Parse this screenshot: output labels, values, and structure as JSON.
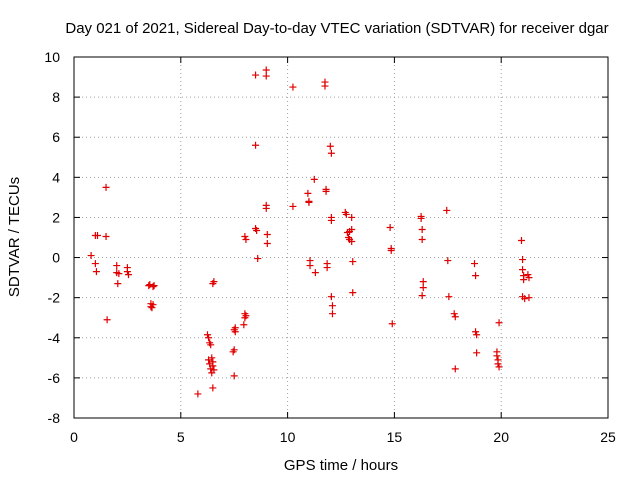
{
  "chart_data": {
    "type": "scatter",
    "title": "Day 021 of 2021, Sidereal Day-to-day VTEC variation (SDTVAR) for receiver dgar",
    "xlabel": "GPS time / hours",
    "ylabel": "SDTVAR / TECUs",
    "xlim": [
      0,
      25
    ],
    "ylim": [
      -8,
      10
    ],
    "xticks": [
      0,
      5,
      10,
      15,
      20,
      25
    ],
    "yticks": [
      -8,
      -6,
      -4,
      -2,
      0,
      2,
      4,
      6,
      8,
      10
    ],
    "grid": true,
    "marker": "plus",
    "color": "#e00000",
    "series": [
      {
        "name": "SDTVAR",
        "x": [
          0.8,
          1.0,
          1.0,
          1.05,
          1.1,
          1.5,
          1.5,
          1.55,
          2.0,
          2.0,
          2.05,
          2.1,
          2.5,
          2.5,
          2.55,
          3.5,
          3.55,
          3.6,
          3.6,
          3.65,
          3.7,
          3.7,
          3.75,
          5.8,
          6.25,
          6.3,
          6.35,
          6.4,
          6.45,
          6.5,
          6.5,
          6.55,
          6.3,
          6.35,
          6.4,
          6.45,
          6.5,
          6.5,
          6.55,
          7.45,
          7.5,
          7.5,
          7.55,
          7.5,
          7.55,
          7.95,
          8.0,
          8.0,
          8.05,
          8.0,
          8.05,
          8.5,
          8.5,
          8.5,
          8.55,
          8.6,
          9.0,
          9.0,
          9.0,
          9.0,
          9.05,
          9.05,
          10.25,
          10.25,
          10.95,
          11.0,
          11.0,
          11.05,
          11.05,
          11.25,
          11.3,
          11.75,
          11.75,
          11.8,
          11.8,
          11.85,
          11.85,
          12.0,
          12.05,
          12.05,
          12.05,
          12.05,
          12.1,
          12.1,
          12.7,
          12.75,
          12.8,
          12.85,
          12.9,
          12.9,
          13.0,
          13.0,
          13.0,
          13.05,
          13.05,
          14.8,
          14.85,
          14.85,
          14.9,
          16.25,
          16.25,
          16.3,
          16.3,
          16.35,
          16.35,
          16.3,
          17.45,
          17.5,
          17.55,
          17.8,
          17.85,
          17.85,
          18.75,
          18.8,
          18.8,
          18.85,
          18.85,
          19.8,
          19.8,
          19.85,
          19.85,
          19.9,
          19.9,
          20.95,
          21.0,
          21.0,
          21.05,
          21.05,
          21.1,
          21.0,
          21.25,
          21.3,
          21.3
        ],
        "y": [
          0.1,
          1.1,
          -0.3,
          -0.7,
          1.1,
          3.5,
          1.05,
          -3.1,
          -0.4,
          -0.75,
          -1.3,
          -0.8,
          -0.5,
          -0.7,
          -0.85,
          -1.4,
          -1.35,
          -2.3,
          -2.45,
          -2.5,
          -1.45,
          -2.35,
          -1.4,
          -6.8,
          -3.85,
          -4.0,
          -4.25,
          -4.35,
          -5.0,
          -5.2,
          -5.4,
          -5.6,
          -5.1,
          -5.3,
          -5.55,
          -5.75,
          -6.5,
          -1.3,
          -1.2,
          -4.7,
          -4.6,
          -5.9,
          -3.5,
          -3.6,
          -3.7,
          -3.35,
          -2.8,
          -3.0,
          -2.9,
          1.05,
          0.9,
          9.1,
          5.6,
          1.45,
          1.35,
          -0.05,
          9.35,
          9.05,
          2.6,
          2.45,
          1.15,
          0.7,
          8.5,
          2.55,
          3.2,
          2.8,
          2.75,
          -0.15,
          -0.4,
          3.9,
          -0.75,
          8.75,
          8.55,
          3.4,
          3.3,
          -0.3,
          -0.5,
          5.55,
          5.2,
          2.0,
          1.85,
          -1.95,
          -2.4,
          -2.8,
          2.25,
          2.15,
          1.25,
          1.0,
          1.3,
          0.9,
          2.0,
          1.4,
          0.8,
          -0.2,
          -1.75,
          1.5,
          0.45,
          0.35,
          -3.3,
          1.95,
          2.05,
          0.9,
          1.4,
          -1.2,
          -1.5,
          -1.9,
          2.35,
          -0.15,
          -1.95,
          -2.8,
          -2.95,
          -5.55,
          -0.3,
          -0.9,
          -3.7,
          -4.75,
          -3.85,
          -4.7,
          -4.9,
          -5.1,
          -5.3,
          -5.45,
          -3.25,
          0.85,
          -0.1,
          -0.6,
          -0.9,
          -1.1,
          -2.05,
          -1.95,
          -0.85,
          -1.0,
          -2.0
        ]
      }
    ]
  }
}
